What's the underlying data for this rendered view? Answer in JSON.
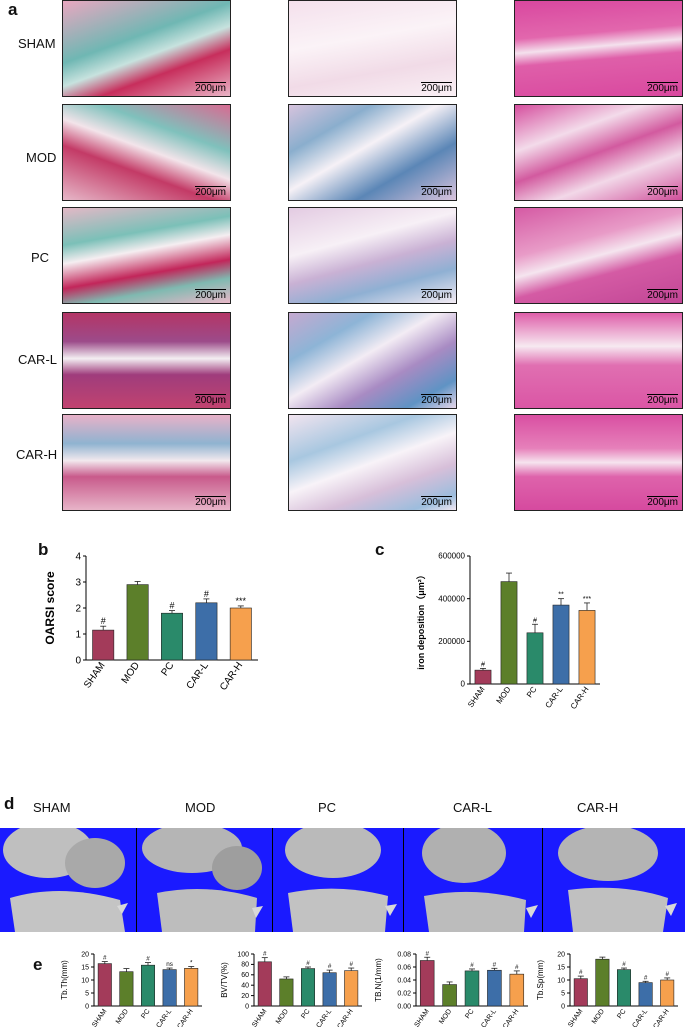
{
  "panel_a": {
    "letter": "a",
    "rows": [
      "SHAM",
      "MOD",
      "PC",
      "CAR-L",
      "CAR-H"
    ],
    "scale_bar": "200μm"
  },
  "panel_d": {
    "letter": "d",
    "groups": [
      "SHAM",
      "MOD",
      "PC",
      "CAR-L",
      "CAR-H"
    ]
  },
  "colors": {
    "SHAM": "#a33b5a",
    "MOD": "#5c7f2a",
    "PC": "#2a8a6a",
    "CAR-L": "#3d6ea8",
    "CAR-H": "#f6a04d",
    "ct_background": "#1a1aff"
  },
  "chart_data": [
    {
      "panel": "b",
      "type": "bar",
      "categories": [
        "SHAM",
        "MOD",
        "PC",
        "CAR-L",
        "CAR-H"
      ],
      "values": [
        1.15,
        2.9,
        1.8,
        2.2,
        2.0
      ],
      "errors": [
        0.15,
        0.12,
        0.1,
        0.15,
        0.08
      ],
      "annotations": [
        "#",
        "",
        "#",
        "#",
        "***"
      ],
      "ylabel": "OARSI score",
      "ylim": [
        0,
        4
      ],
      "yticks": [
        "0",
        "1",
        "2",
        "3",
        "4"
      ]
    },
    {
      "panel": "c",
      "type": "bar",
      "categories": [
        "SHAM",
        "MOD",
        "PC",
        "CAR-L",
        "CAR-H"
      ],
      "values": [
        65000,
        480000,
        240000,
        370000,
        345000
      ],
      "errors": [
        8000,
        40000,
        40000,
        30000,
        35000
      ],
      "annotations": [
        "#",
        "",
        "#",
        "**",
        "***"
      ],
      "ylabel": "iron deposition（μm²）",
      "ylim": [
        0,
        600000
      ],
      "yticks": [
        "0",
        "200000",
        "400000",
        "600000"
      ]
    },
    {
      "panel": "e",
      "type": "bar",
      "categories": [
        "SHAM",
        "MOD",
        "PC",
        "CAR-L",
        "CAR-H"
      ],
      "values": [
        16.3,
        13.2,
        15.7,
        14.0,
        14.5
      ],
      "errors": [
        0.8,
        1.2,
        1.0,
        0.6,
        0.7
      ],
      "annotations": [
        "#",
        "",
        "#",
        "ns",
        "*"
      ],
      "ylabel": "Tb.Th(mm)",
      "ylim": [
        0,
        20
      ],
      "yticks": [
        "0",
        "5",
        "10",
        "15",
        "20"
      ]
    },
    {
      "panel": "e",
      "type": "bar",
      "categories": [
        "SHAM",
        "MOD",
        "PC",
        "CAR-L",
        "CAR-H"
      ],
      "values": [
        85,
        52,
        72,
        64,
        68
      ],
      "errors": [
        8,
        4,
        3,
        5,
        5
      ],
      "annotations": [
        "#",
        "",
        "#",
        "#",
        "#"
      ],
      "ylabel": "BV/TV(%)",
      "ylim": [
        0,
        100
      ],
      "yticks": [
        "0",
        "20",
        "40",
        "60",
        "80",
        "100"
      ]
    },
    {
      "panel": "e",
      "type": "bar",
      "categories": [
        "SHAM",
        "MOD",
        "PC",
        "CAR-L",
        "CAR-H"
      ],
      "values": [
        0.07,
        0.033,
        0.054,
        0.055,
        0.049
      ],
      "errors": [
        0.005,
        0.004,
        0.003,
        0.003,
        0.005
      ],
      "annotations": [
        "#",
        "",
        "#",
        "#",
        "#"
      ],
      "ylabel": "TB.N(1/mm)",
      "ylim": [
        0,
        0.08
      ],
      "yticks": [
        "0.00",
        "0.02",
        "0.04",
        "0.06",
        "0.08"
      ]
    },
    {
      "panel": "e",
      "type": "bar",
      "categories": [
        "SHAM",
        "MOD",
        "PC",
        "CAR-L",
        "CAR-H"
      ],
      "values": [
        10.5,
        18.0,
        14.0,
        9.0,
        10.0
      ],
      "errors": [
        1.0,
        0.8,
        0.6,
        0.5,
        0.8
      ],
      "annotations": [
        "#",
        "",
        "#",
        "#",
        "#"
      ],
      "ylabel": "Tb.Sp(mm)",
      "ylim": [
        0,
        20
      ],
      "yticks": [
        "0",
        "5",
        "10",
        "15",
        "20"
      ]
    }
  ],
  "panel_b_letter": "b",
  "panel_c_letter": "c",
  "panel_e_letter": "e"
}
